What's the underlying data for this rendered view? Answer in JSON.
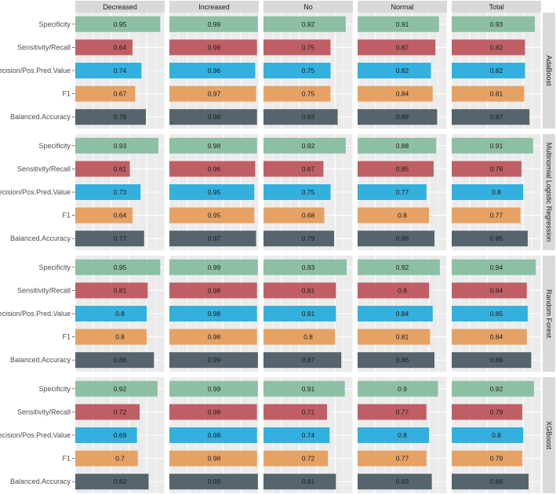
{
  "chart_data": {
    "type": "bar",
    "orientation": "horizontal",
    "grid": true,
    "legend": "none",
    "xlim": [
      0,
      1
    ],
    "facet_columns": [
      "Decreased",
      "Increased",
      "No",
      "Normal",
      "Total"
    ],
    "facet_rows": [
      "AdaBoost",
      "Multinomial Logistic Regression",
      "Random Forest",
      "XGBoost"
    ],
    "metrics": [
      "Specificity",
      "Sensitivity/Recall",
      "Precision/Pos.Pred.Value",
      "F1",
      "Balanced.Accuracy"
    ],
    "metric_colors": {
      "Specificity": "#8dbfa5",
      "Sensitivity/Recall": "#bf5f65",
      "Precision/Pos.Pred.Value": "#33b0dd",
      "F1": "#e6a264",
      "Balanced.Accuracy": "#56656d"
    },
    "panels": [
      {
        "model": "AdaBoost",
        "class": "Decreased",
        "values": [
          0.95,
          0.64,
          0.74,
          0.67,
          0.79
        ]
      },
      {
        "model": "AdaBoost",
        "class": "Increased",
        "values": [
          0.99,
          0.98,
          0.96,
          0.97,
          0.98
        ]
      },
      {
        "model": "AdaBoost",
        "class": "No",
        "values": [
          0.92,
          0.75,
          0.75,
          0.75,
          0.83
        ]
      },
      {
        "model": "AdaBoost",
        "class": "Normal",
        "values": [
          0.91,
          0.87,
          0.82,
          0.84,
          0.89
        ]
      },
      {
        "model": "AdaBoost",
        "class": "Total",
        "values": [
          0.93,
          0.82,
          0.82,
          0.81,
          0.87
        ]
      },
      {
        "model": "Multinomial Logistic Regression",
        "class": "Decreased",
        "values": [
          0.93,
          0.61,
          0.73,
          0.64,
          0.77
        ]
      },
      {
        "model": "Multinomial Logistic Regression",
        "class": "Increased",
        "values": [
          0.98,
          0.96,
          0.95,
          0.95,
          0.97
        ]
      },
      {
        "model": "Multinomial Logistic Regression",
        "class": "No",
        "values": [
          0.92,
          0.67,
          0.75,
          0.68,
          0.79
        ]
      },
      {
        "model": "Multinomial Logistic Regression",
        "class": "Normal",
        "values": [
          0.88,
          0.85,
          0.77,
          0.8,
          0.86
        ]
      },
      {
        "model": "Multinomial Logistic Regression",
        "class": "Total",
        "values": [
          0.91,
          0.78,
          0.8,
          0.77,
          0.85
        ]
      },
      {
        "model": "Random Forest",
        "class": "Decreased",
        "values": [
          0.95,
          0.81,
          0.8,
          0.8,
          0.88
        ]
      },
      {
        "model": "Random Forest",
        "class": "Increased",
        "values": [
          0.99,
          0.98,
          0.98,
          0.98,
          0.99
        ]
      },
      {
        "model": "Random Forest",
        "class": "No",
        "values": [
          0.93,
          0.81,
          0.81,
          0.8,
          0.87
        ]
      },
      {
        "model": "Random Forest",
        "class": "Normal",
        "values": [
          0.92,
          0.8,
          0.84,
          0.81,
          0.86
        ]
      },
      {
        "model": "Random Forest",
        "class": "Total",
        "values": [
          0.94,
          0.84,
          0.85,
          0.84,
          0.89
        ]
      },
      {
        "model": "XGBoost",
        "class": "Decreased",
        "values": [
          0.92,
          0.72,
          0.69,
          0.7,
          0.82
        ]
      },
      {
        "model": "XGBoost",
        "class": "Increased",
        "values": [
          0.99,
          0.98,
          0.98,
          0.98,
          0.99
        ]
      },
      {
        "model": "XGBoost",
        "class": "No",
        "values": [
          0.91,
          0.71,
          0.74,
          0.72,
          0.81
        ]
      },
      {
        "model": "XGBoost",
        "class": "Normal",
        "values": [
          0.9,
          0.77,
          0.8,
          0.77,
          0.83
        ]
      },
      {
        "model": "XGBoost",
        "class": "Total",
        "values": [
          0.92,
          0.79,
          0.8,
          0.79,
          0.86
        ]
      }
    ]
  }
}
